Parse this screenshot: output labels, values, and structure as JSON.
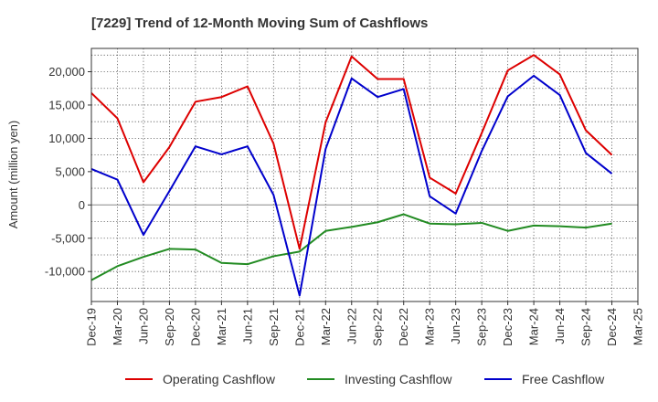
{
  "chart_data": {
    "type": "line",
    "title": "[7229]  Trend of 12-Month Moving Sum of Cashflows",
    "ylabel": "Amount (million yen)",
    "xlabel": "",
    "ylim": [
      -14500,
      23500
    ],
    "yticks": [
      -10000,
      -5000,
      0,
      5000,
      10000,
      15000,
      20000
    ],
    "ytick_labels": [
      "-10,000",
      "-5,000",
      "0",
      "5,000",
      "10,000",
      "15,000",
      "20,000"
    ],
    "categories": [
      "Dec-19",
      "Mar-20",
      "Jun-20",
      "Sep-20",
      "Dec-20",
      "Mar-21",
      "Jun-21",
      "Sep-21",
      "Dec-21",
      "Mar-22",
      "Jun-22",
      "Sep-22",
      "Dec-22",
      "Mar-23",
      "Jun-23",
      "Sep-23",
      "Dec-23",
      "Mar-24",
      "Jun-24",
      "Sep-24",
      "Dec-24",
      "Mar-25"
    ],
    "grid": true,
    "legend_position": "bottom",
    "series": [
      {
        "name": "Operating Cashflow",
        "color": "#dd0000",
        "values": [
          16800,
          13000,
          3400,
          8700,
          15500,
          16200,
          17800,
          9200,
          -6600,
          12400,
          22300,
          18900,
          18900,
          4100,
          1700,
          10800,
          20200,
          22500,
          19600,
          11200,
          7500,
          null
        ]
      },
      {
        "name": "Investing Cashflow",
        "color": "#228b22",
        "values": [
          -11300,
          -9200,
          -7800,
          -6600,
          -6700,
          -8700,
          -8900,
          -7700,
          -7000,
          -3900,
          -3300,
          -2600,
          -1400,
          -2800,
          -2900,
          -2700,
          -3900,
          -3100,
          -3200,
          -3400,
          -2800,
          null
        ]
      },
      {
        "name": "Free Cashflow",
        "color": "#0000cc",
        "values": [
          5400,
          3800,
          -4500,
          2100,
          8800,
          7600,
          8800,
          1500,
          -13600,
          8400,
          19000,
          16200,
          17400,
          1300,
          -1300,
          8100,
          16300,
          19400,
          16500,
          7800,
          4700,
          null
        ]
      }
    ]
  }
}
